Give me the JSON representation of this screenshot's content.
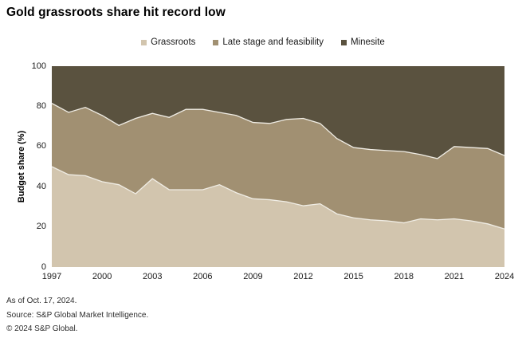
{
  "title": "Gold grassroots share hit record low",
  "footer": {
    "as_of": "As of Oct. 17, 2024.",
    "source": "Source: S&P Global Market Intelligence.",
    "copyright": "© 2024 S&P Global."
  },
  "colors": {
    "grassroots": "#d2c5ae",
    "late_stage": "#a19072",
    "minesite": "#5a523f",
    "boundary_line": "#f0ede5",
    "text": "#1a1a1a"
  },
  "chart_data": {
    "type": "area",
    "stacked": true,
    "title": "Gold grassroots share hit record low",
    "xlabel": "",
    "ylabel": "Budget share (%)",
    "ylim": [
      0,
      100
    ],
    "grid": false,
    "legend_position": "top-center",
    "x": [
      1997,
      1998,
      1999,
      2000,
      2001,
      2002,
      2003,
      2004,
      2005,
      2006,
      2007,
      2008,
      2009,
      2010,
      2011,
      2012,
      2013,
      2014,
      2015,
      2016,
      2017,
      2018,
      2019,
      2020,
      2021,
      2022,
      2023,
      2024
    ],
    "x_ticks": [
      1997,
      2000,
      2003,
      2006,
      2009,
      2012,
      2015,
      2018,
      2021,
      2024
    ],
    "y_ticks": [
      0,
      20,
      40,
      60,
      80,
      100
    ],
    "series": [
      {
        "name": "Grassroots",
        "color": "#d2c5ae",
        "values": [
          50,
          46,
          45.5,
          42.5,
          41,
          36.5,
          44,
          38.5,
          38.5,
          38.5,
          41,
          37,
          34,
          33.5,
          32.5,
          30.5,
          31.5,
          26.5,
          24.5,
          23.5,
          23,
          22,
          24,
          23.5,
          24,
          23,
          21.5,
          19
        ]
      },
      {
        "name": "Late stage and feasibility",
        "color": "#a19072",
        "values": [
          31.5,
          31,
          34,
          33,
          29.5,
          37.5,
          32.5,
          36,
          40,
          40,
          36,
          38.5,
          38,
          38,
          41,
          43.5,
          40,
          37.5,
          35,
          35,
          35,
          35.5,
          32,
          30.5,
          36,
          36.5,
          37.5,
          36.5
        ]
      },
      {
        "name": "Minesite",
        "color": "#5a523f",
        "values": [
          18.5,
          23,
          20.5,
          24.5,
          29.5,
          26,
          23.5,
          25.5,
          21.5,
          21.5,
          23,
          24.5,
          28,
          28.5,
          26.5,
          26,
          28.5,
          36,
          40.5,
          41.5,
          42,
          42.5,
          44,
          46,
          40,
          40.5,
          41,
          44.5
        ]
      }
    ]
  }
}
